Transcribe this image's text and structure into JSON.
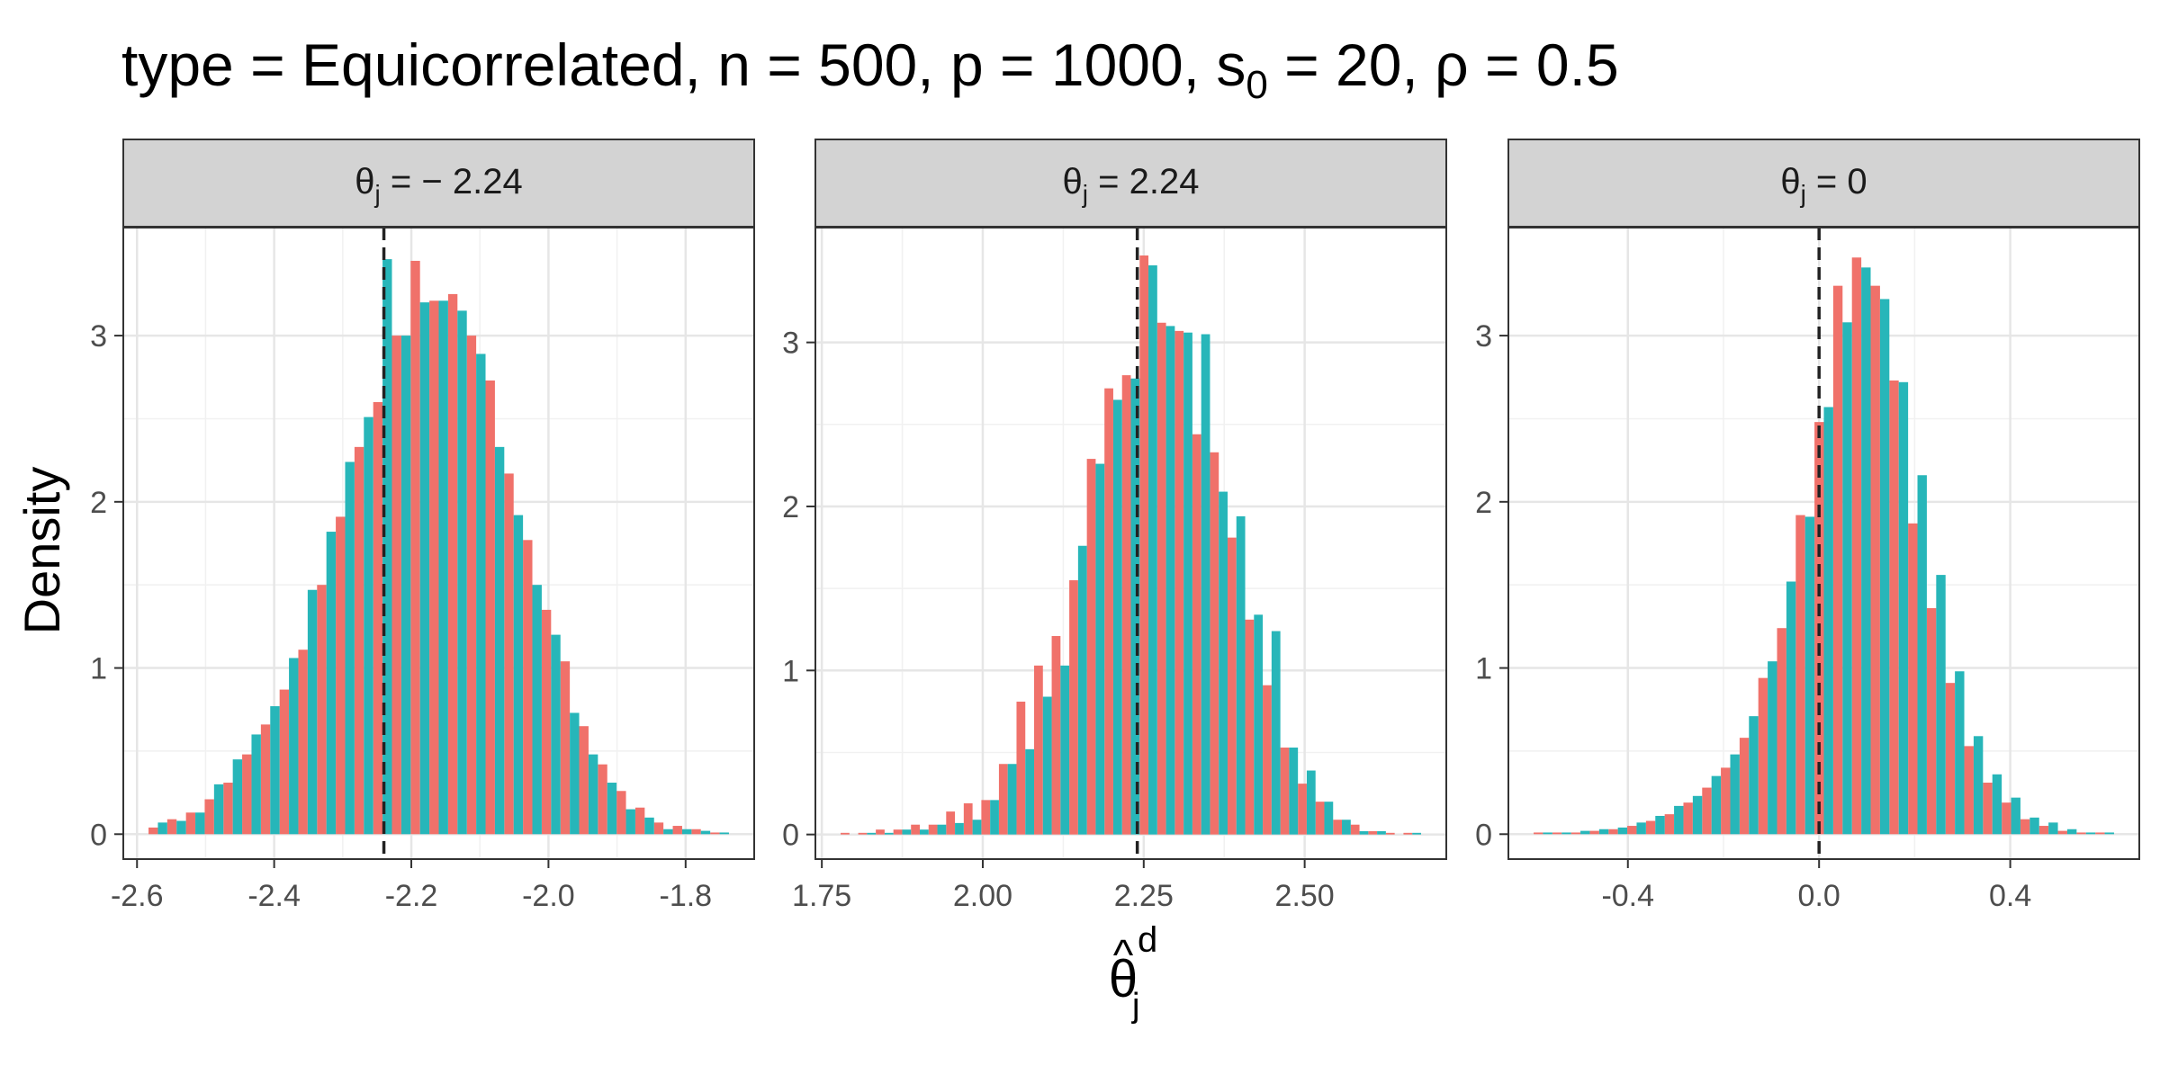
{
  "title": {
    "prefix": "type = Equicorrelated, n = 500, p = 1000, s",
    "sub": "0",
    "suffix": " = 20, ρ = 0.5"
  },
  "ylabel": "Density",
  "xlabel": {
    "main": "θ",
    "hat": "^",
    "sup": "d",
    "sub": "j"
  },
  "colors": {
    "series_a": "#F0716A",
    "series_b": "#27B6B9",
    "ref_line": "#222222",
    "grid": "#E6E6E6",
    "strip": "#D3D3D3"
  },
  "chart_data": [
    {
      "type": "bar",
      "facet": {
        "main": "θ",
        "sub": "j",
        "rest": " = − 2.24"
      },
      "reference_line": -2.24,
      "xlim": [
        -2.62,
        -1.7
      ],
      "ylim": [
        -0.15,
        3.65
      ],
      "xticks": [
        {
          "value": -2.6,
          "label": "-2.6"
        },
        {
          "value": -2.4,
          "label": "-2.4"
        },
        {
          "value": -2.2,
          "label": "-2.2"
        },
        {
          "value": -2.0,
          "label": "-2.0"
        },
        {
          "value": -1.8,
          "label": "-1.8"
        }
      ],
      "yticks": [
        {
          "value": 0,
          "label": "0"
        },
        {
          "value": 1,
          "label": "1"
        },
        {
          "value": 2,
          "label": "2"
        },
        {
          "value": 3,
          "label": "3"
        }
      ],
      "series": [
        {
          "values": [
            0.04,
            0.09,
            0.13,
            0.21,
            0.31,
            0.48,
            0.66,
            0.87,
            1.11,
            1.5,
            1.91,
            2.33,
            2.6,
            3.0,
            3.45,
            3.21,
            3.25,
            3.0,
            2.73,
            2.17,
            1.77,
            1.35,
            1.04,
            0.65,
            0.42,
            0.26,
            0.16,
            0.07,
            0.05,
            0.03,
            0.01
          ]
        },
        {
          "values": [
            0.07,
            0.08,
            0.13,
            0.3,
            0.45,
            0.6,
            0.77,
            1.06,
            1.47,
            1.82,
            2.24,
            2.51,
            3.46,
            3.0,
            3.2,
            3.21,
            3.15,
            2.89,
            2.33,
            1.92,
            1.5,
            1.2,
            0.73,
            0.48,
            0.31,
            0.15,
            0.1,
            0.03,
            0.03,
            0.02,
            0.01
          ]
        }
      ]
    },
    {
      "type": "bar",
      "facet": {
        "main": "θ",
        "sub": "j",
        "rest": " = 2.24"
      },
      "reference_line": 2.24,
      "xlim": [
        1.74,
        2.72
      ],
      "ylim": [
        -0.15,
        3.7
      ],
      "xticks": [
        {
          "value": 1.75,
          "label": "1.75"
        },
        {
          "value": 2.0,
          "label": "2.00"
        },
        {
          "value": 2.25,
          "label": "2.25"
        },
        {
          "value": 2.5,
          "label": "2.50"
        }
      ],
      "yticks": [
        {
          "value": 0,
          "label": "0"
        },
        {
          "value": 1,
          "label": "1"
        },
        {
          "value": 2,
          "label": "2"
        },
        {
          "value": 3,
          "label": "3"
        }
      ],
      "series": [
        {
          "values": [
            0.01,
            0.01,
            0.03,
            0.03,
            0.06,
            0.06,
            0.14,
            0.19,
            0.21,
            0.43,
            0.81,
            1.03,
            1.21,
            1.55,
            2.29,
            2.72,
            2.8,
            3.53,
            3.12,
            3.07,
            2.44,
            2.33,
            1.81,
            1.31,
            0.91,
            0.53,
            0.31,
            0.2,
            0.09,
            0.06,
            0.02,
            0.01,
            0.01
          ]
        },
        {
          "values": [
            0.0,
            0.01,
            0.01,
            0.03,
            0.03,
            0.06,
            0.07,
            0.09,
            0.21,
            0.43,
            0.52,
            0.84,
            1.03,
            1.76,
            2.26,
            2.65,
            2.78,
            3.47,
            3.1,
            3.06,
            3.05,
            2.09,
            1.94,
            1.34,
            1.24,
            0.53,
            0.39,
            0.2,
            0.09,
            0.02,
            0.02,
            0.0,
            0.01
          ]
        }
      ]
    },
    {
      "type": "bar",
      "facet": {
        "main": "θ",
        "sub": "j",
        "rest": " = 0"
      },
      "reference_line": 0,
      "xlim": [
        -0.65,
        0.67
      ],
      "ylim": [
        -0.15,
        3.65
      ],
      "xticks": [
        {
          "value": -0.4,
          "label": "-0.4"
        },
        {
          "value": 0.0,
          "label": "0.0"
        },
        {
          "value": 0.4,
          "label": "0.4"
        }
      ],
      "yticks": [
        {
          "value": 0,
          "label": "0"
        },
        {
          "value": 1,
          "label": "1"
        },
        {
          "value": 2,
          "label": "2"
        },
        {
          "value": 3,
          "label": "3"
        }
      ],
      "series": [
        {
          "values": [
            0.01,
            0.01,
            0.01,
            0.02,
            0.03,
            0.05,
            0.08,
            0.12,
            0.19,
            0.28,
            0.4,
            0.58,
            0.94,
            1.24,
            1.92,
            2.48,
            3.3,
            3.47,
            3.3,
            2.73,
            1.87,
            1.36,
            0.91,
            0.53,
            0.31,
            0.19,
            0.09,
            0.05,
            0.02,
            0.01,
            0.01
          ]
        },
        {
          "values": [
            0.01,
            0.01,
            0.02,
            0.03,
            0.04,
            0.07,
            0.11,
            0.17,
            0.23,
            0.35,
            0.48,
            0.71,
            1.04,
            1.52,
            1.91,
            2.57,
            3.08,
            3.41,
            3.22,
            2.72,
            2.16,
            1.56,
            0.98,
            0.59,
            0.36,
            0.22,
            0.1,
            0.07,
            0.03,
            0.01,
            0.01
          ]
        }
      ]
    }
  ]
}
